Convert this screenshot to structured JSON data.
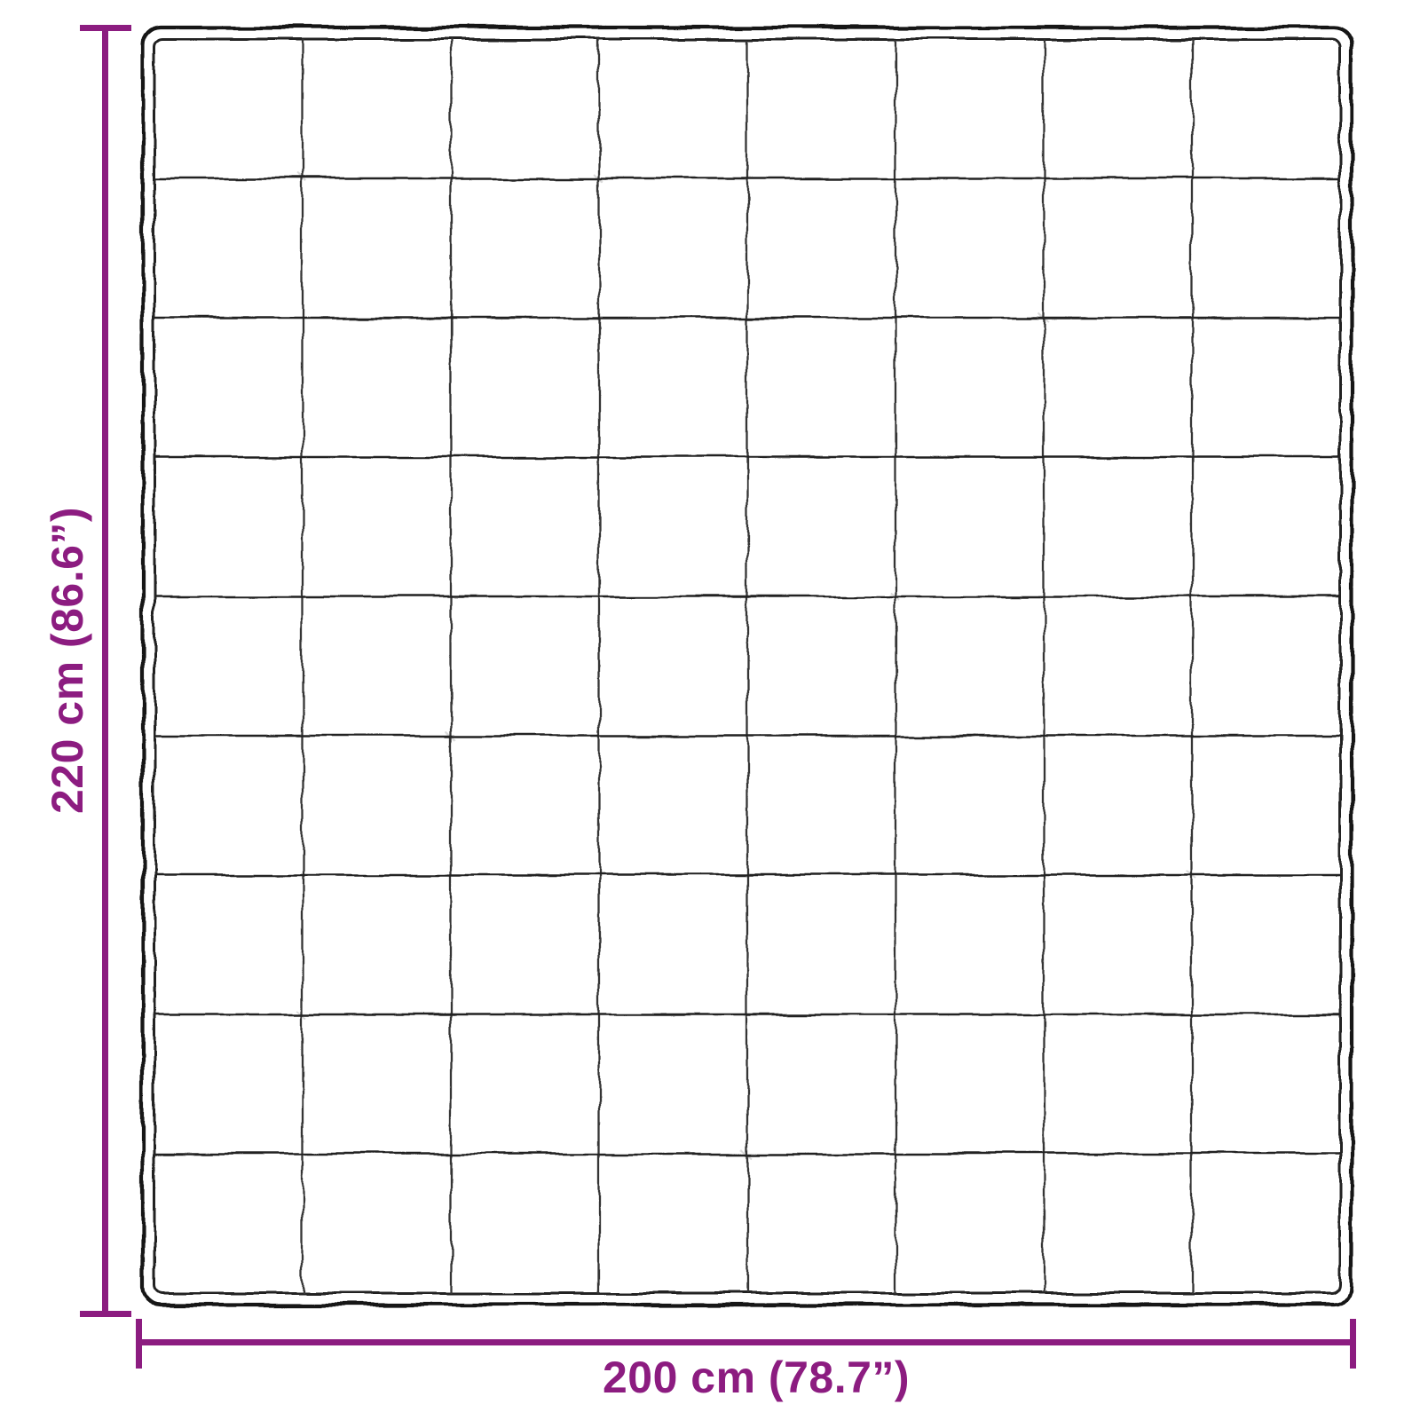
{
  "figure": {
    "title": "blanket-dimension-diagram",
    "grid": {
      "columns": 8,
      "rows": 9
    }
  },
  "dimensions": {
    "height_label": "220 cm (86.6”)",
    "width_label": "200 cm (78.7”)"
  },
  "colors": {
    "accent": "#8C1C80",
    "outline": "#161616",
    "inner_line": "#232323",
    "grid_line": "#343434",
    "background": "#FFFFFF"
  }
}
